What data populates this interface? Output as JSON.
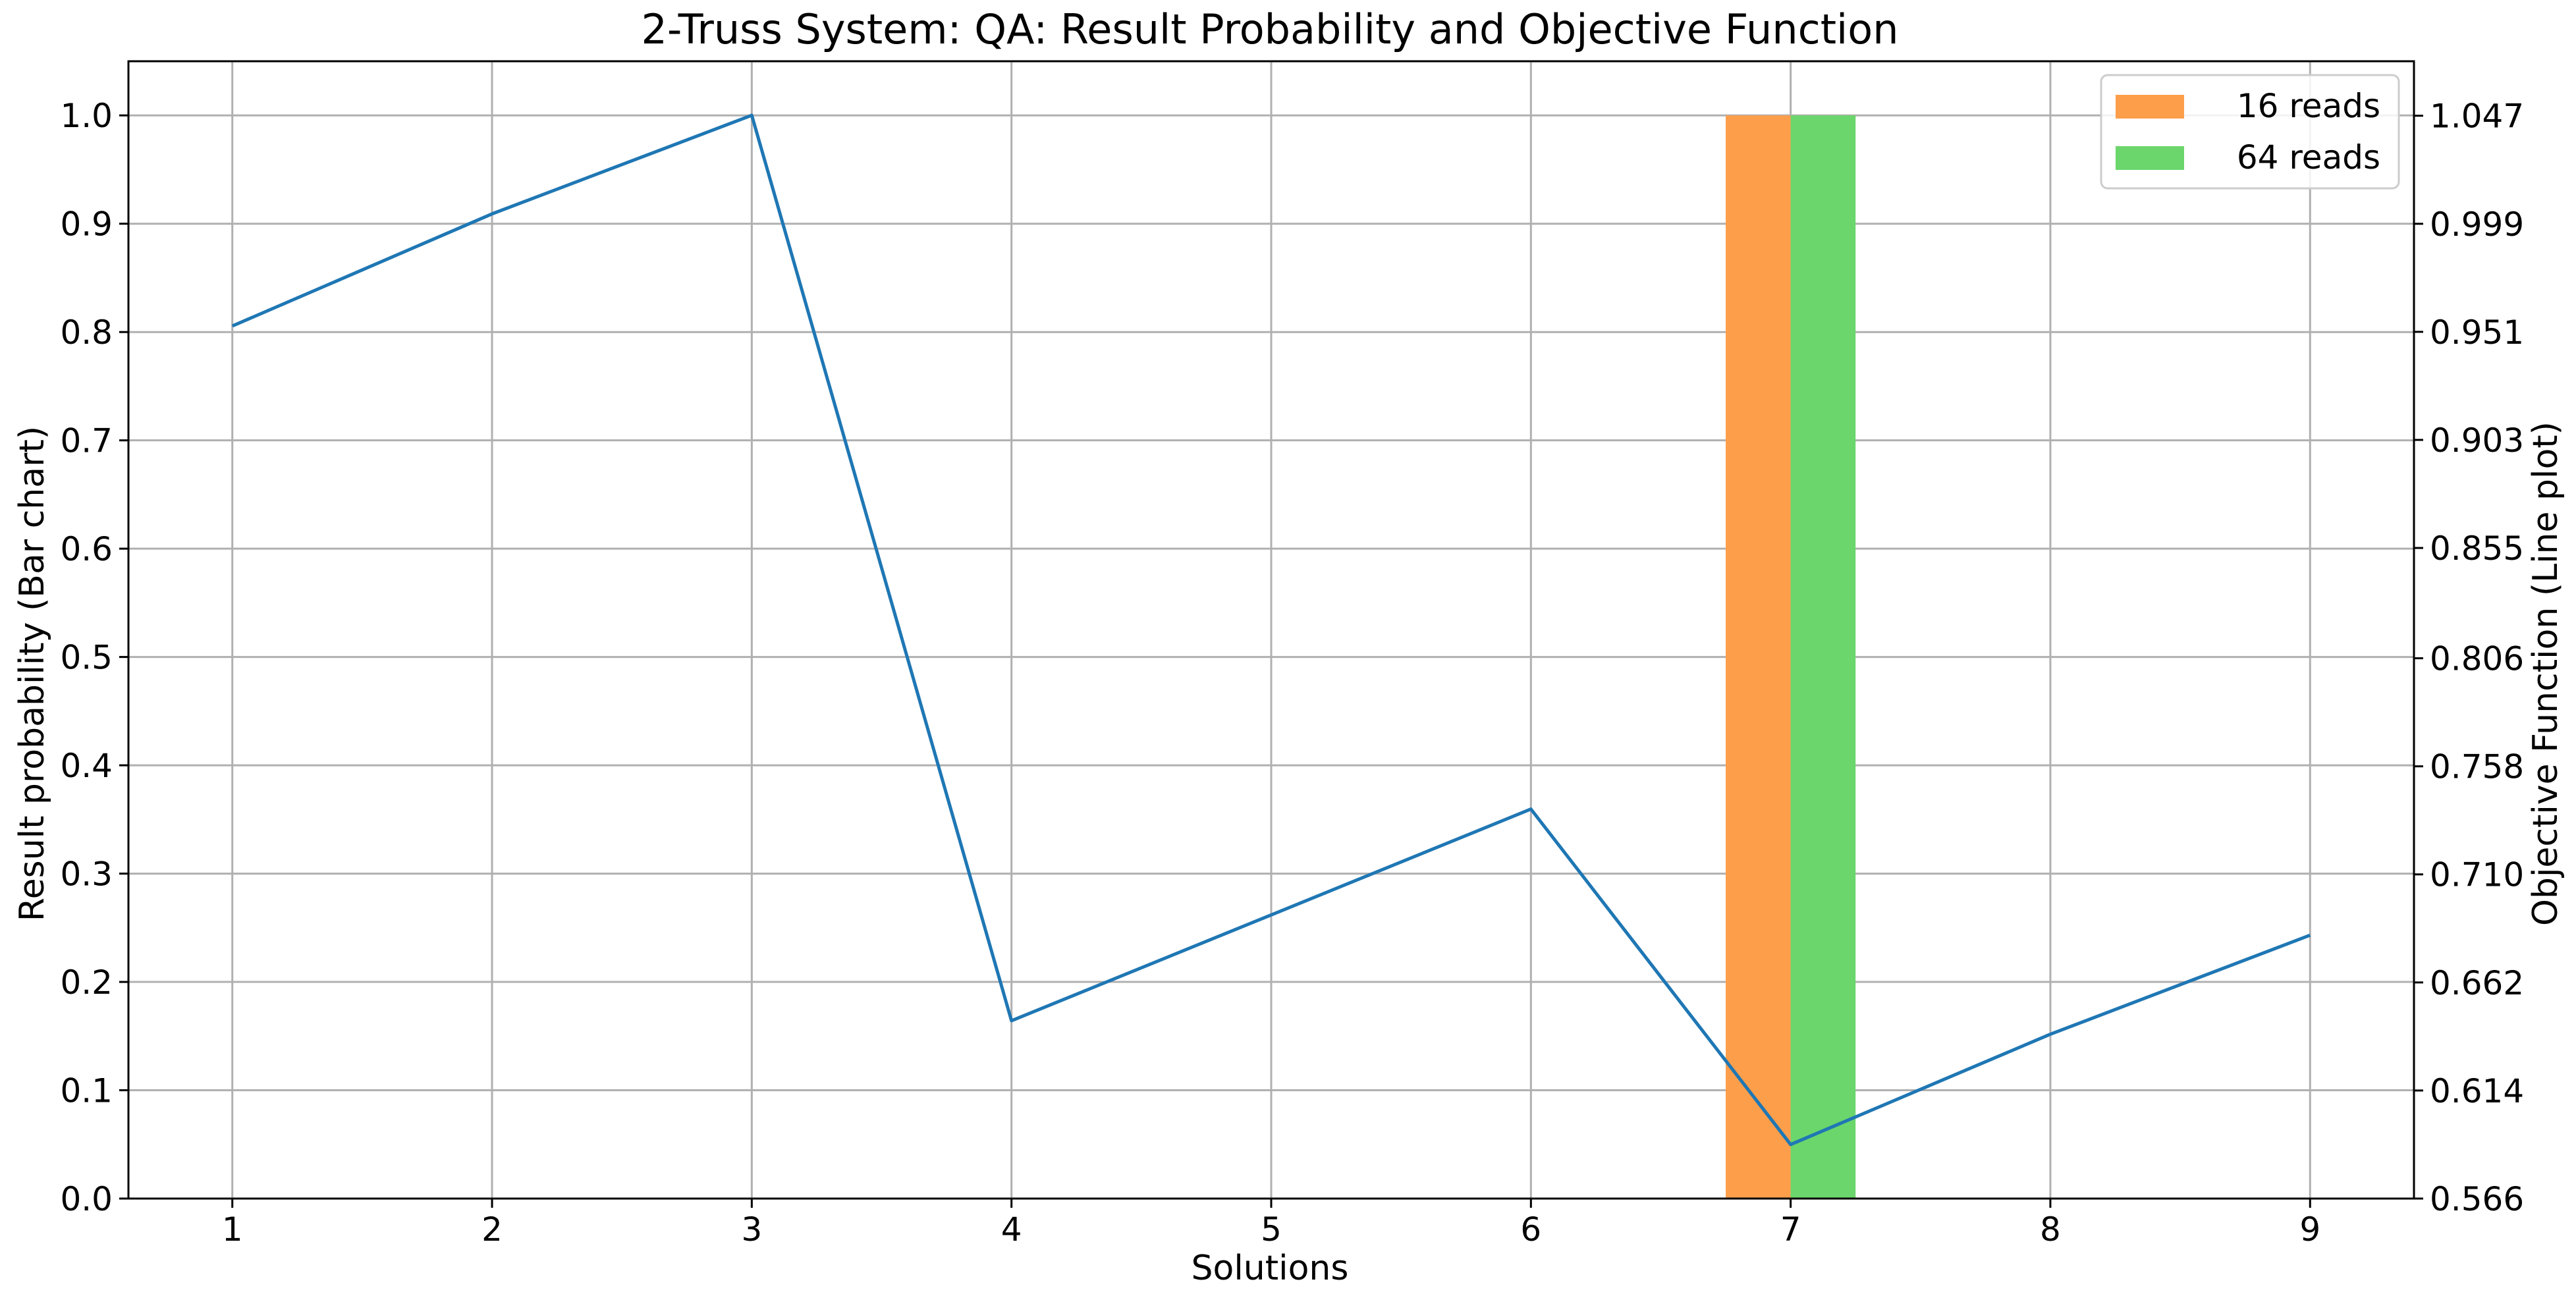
{
  "chart_data": {
    "type": "bar",
    "title": "2-Truss System: QA: Result Probability and Objective Function",
    "xlabel": "Solutions",
    "ylabel": "Result probability (Bar chart)",
    "y2label": "Objective Function (Line plot)",
    "categories": [
      1,
      2,
      3,
      4,
      5,
      6,
      7,
      8,
      9
    ],
    "xlim": [
      0.6,
      9.4
    ],
    "ylim": [
      0,
      1.05
    ],
    "y2lim": [
      0.566,
      1.0712
    ],
    "y_ticks": [
      "0.0",
      "0.1",
      "0.2",
      "0.3",
      "0.4",
      "0.5",
      "0.6",
      "0.7",
      "0.8",
      "0.9",
      "1.0"
    ],
    "y2_ticks": [
      "0.566",
      "0.614",
      "0.662",
      "0.710",
      "0.758",
      "0.806",
      "0.855",
      "0.903",
      "0.951",
      "0.999",
      "1.047"
    ],
    "grid": true,
    "legend_position": "top-right",
    "bar_series": [
      {
        "name": "16 reads",
        "color": "#fd9e4b",
        "values": [
          0,
          0,
          0,
          0,
          0,
          0,
          1.0,
          0,
          0
        ]
      },
      {
        "name": "64 reads",
        "color": "#6bd66b",
        "values": [
          0,
          0,
          0,
          0,
          0,
          0,
          1.0,
          0,
          0
        ]
      }
    ],
    "line_series": {
      "color": "#1f77b4",
      "axis": "right",
      "values": [
        0.9536,
        1.0034,
        1.0472,
        0.645,
        0.692,
        0.739,
        0.59,
        0.639,
        0.683
      ]
    }
  }
}
